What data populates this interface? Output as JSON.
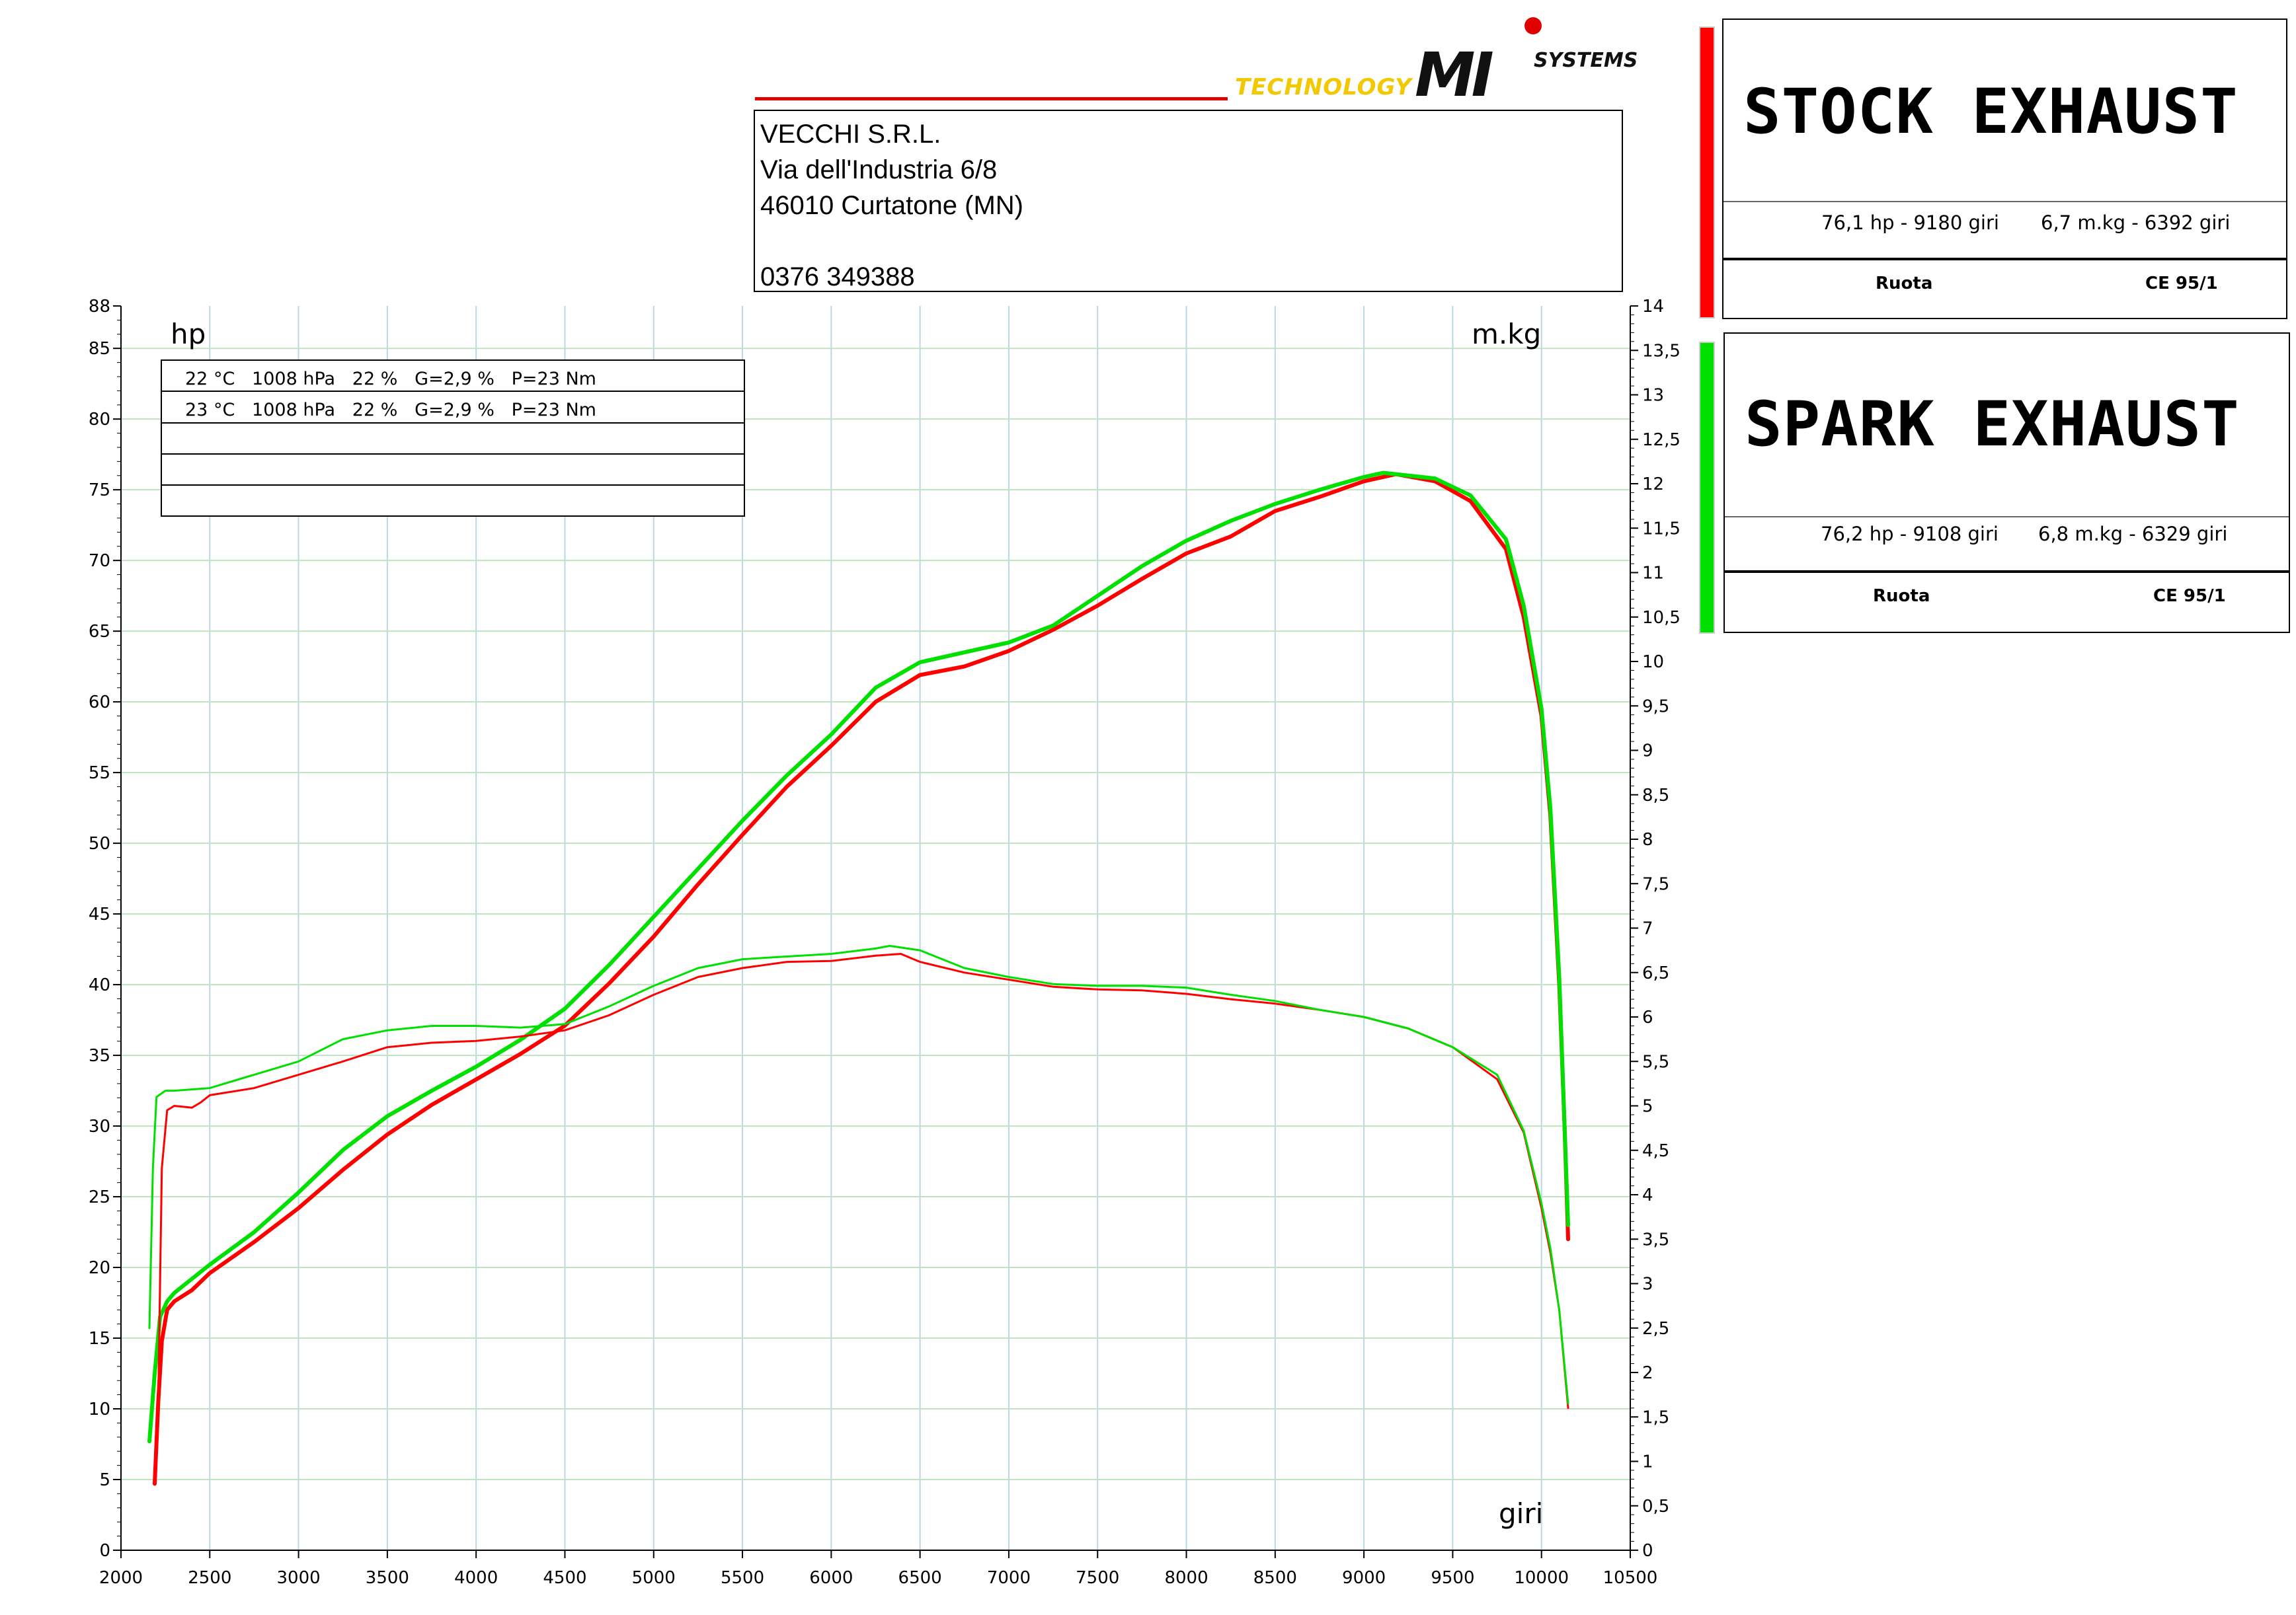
{
  "header": {
    "logo_text": "TECHNOLOGY MI SYSTEMS",
    "logo_tech": "TECHNOLOGY",
    "logo_mi": "MI",
    "logo_sys": "SYSTEMS",
    "address_lines": [
      "VECCHI S.R.L.",
      "Via dell'Industria 6/8",
      "46010 Curtatone (MN)",
      "",
      "0376 349388"
    ]
  },
  "legend": [
    {
      "name": "STOCK EXHAUST",
      "color": "#ff0000",
      "power_info": "76,1 hp - 9180 giri",
      "torque_info": "6,7 m.kg - 6392 giri",
      "mode": "Ruota",
      "standard": "CE 95/1"
    },
    {
      "name": "SPARK EXHAUST",
      "color": "#00e000",
      "power_info": "76,2 hp - 9108 giri",
      "torque_info": "6,8 m.kg - 6329 giri",
      "mode": "Ruota",
      "standard": "CE 95/1"
    }
  ],
  "conditions": [
    "22 °C   1008 hPa   22 %   G=2,9 %   P=23 Nm",
    "23 °C   1008 hPa   22 %   G=2,9 %   P=23 Nm",
    "",
    "",
    ""
  ],
  "chart_data": {
    "type": "line",
    "ylabel_left": "hp",
    "ylabel_right": "m.kg",
    "xlabel": "giri",
    "xlim": [
      2000,
      10500
    ],
    "ylim_left": [
      0,
      88
    ],
    "ylim_right": [
      0,
      14
    ],
    "x_ticks": [
      2000,
      2500,
      3000,
      3500,
      4000,
      4500,
      5000,
      5500,
      6000,
      6500,
      7000,
      7500,
      8000,
      8500,
      9000,
      9500,
      10000,
      10500
    ],
    "y_ticks_left": [
      "0",
      "5",
      "10",
      "15",
      "20",
      "25",
      "30",
      "35",
      "40",
      "45",
      "50",
      "55",
      "60",
      "65",
      "70",
      "75",
      "80",
      "85",
      "88"
    ],
    "y_ticks_right": [
      "0",
      "0,5",
      "1",
      "1,5",
      "2",
      "2,5",
      "3",
      "3,5",
      "4",
      "4,5",
      "5",
      "5,5",
      "6",
      "6,5",
      "7",
      "7,5",
      "8",
      "8,5",
      "9",
      "9,5",
      "10",
      "10,5",
      "11",
      "11,5",
      "12",
      "12,5",
      "13",
      "13,5",
      "14"
    ],
    "grid": true,
    "series": [
      {
        "name": "STOCK EXHAUST",
        "kind": "power",
        "axis": "left",
        "color": "#ff0000",
        "points": [
          [
            2190,
            4.7
          ],
          [
            2210,
            10.5
          ],
          [
            2230,
            14.8
          ],
          [
            2260,
            17.0
          ],
          [
            2300,
            17.6
          ],
          [
            2400,
            18.4
          ],
          [
            2500,
            19.6
          ],
          [
            2750,
            21.8
          ],
          [
            3000,
            24.2
          ],
          [
            3250,
            26.9
          ],
          [
            3500,
            29.4
          ],
          [
            3750,
            31.5
          ],
          [
            4000,
            33.3
          ],
          [
            4250,
            35.1
          ],
          [
            4500,
            37.1
          ],
          [
            4750,
            40.1
          ],
          [
            5000,
            43.4
          ],
          [
            5250,
            47.1
          ],
          [
            5500,
            50.6
          ],
          [
            5750,
            54.0
          ],
          [
            6000,
            56.9
          ],
          [
            6250,
            60.0
          ],
          [
            6500,
            61.9
          ],
          [
            6750,
            62.5
          ],
          [
            7000,
            63.6
          ],
          [
            7250,
            65.1
          ],
          [
            7500,
            66.8
          ],
          [
            7750,
            68.7
          ],
          [
            8000,
            70.5
          ],
          [
            8250,
            71.7
          ],
          [
            8500,
            73.5
          ],
          [
            8750,
            74.5
          ],
          [
            9000,
            75.6
          ],
          [
            9180,
            76.1
          ],
          [
            9400,
            75.6
          ],
          [
            9600,
            74.2
          ],
          [
            9800,
            70.8
          ],
          [
            9900,
            66.0
          ],
          [
            10000,
            59.0
          ],
          [
            10050,
            52.0
          ],
          [
            10100,
            40.0
          ],
          [
            10130,
            30.0
          ],
          [
            10150,
            22.0
          ]
        ]
      },
      {
        "name": "SPARK EXHAUST",
        "kind": "power",
        "axis": "left",
        "color": "#00e000",
        "points": [
          [
            2160,
            7.7
          ],
          [
            2190,
            12.5
          ],
          [
            2220,
            16.5
          ],
          [
            2260,
            17.6
          ],
          [
            2300,
            18.2
          ],
          [
            2400,
            19.2
          ],
          [
            2500,
            20.2
          ],
          [
            2750,
            22.5
          ],
          [
            3000,
            25.3
          ],
          [
            3250,
            28.3
          ],
          [
            3500,
            30.7
          ],
          [
            3750,
            32.5
          ],
          [
            4000,
            34.2
          ],
          [
            4250,
            36.1
          ],
          [
            4500,
            38.3
          ],
          [
            4750,
            41.4
          ],
          [
            5000,
            44.8
          ],
          [
            5250,
            48.2
          ],
          [
            5500,
            51.6
          ],
          [
            5750,
            54.8
          ],
          [
            6000,
            57.7
          ],
          [
            6250,
            61.0
          ],
          [
            6500,
            62.8
          ],
          [
            6750,
            63.5
          ],
          [
            7000,
            64.2
          ],
          [
            7250,
            65.4
          ],
          [
            7500,
            67.5
          ],
          [
            7750,
            69.6
          ],
          [
            8000,
            71.4
          ],
          [
            8250,
            72.8
          ],
          [
            8500,
            74.0
          ],
          [
            8750,
            75.0
          ],
          [
            9000,
            75.9
          ],
          [
            9108,
            76.2
          ],
          [
            9400,
            75.8
          ],
          [
            9600,
            74.6
          ],
          [
            9800,
            71.5
          ],
          [
            9900,
            66.8
          ],
          [
            10000,
            59.5
          ],
          [
            10050,
            52.5
          ],
          [
            10100,
            40.5
          ],
          [
            10130,
            30.0
          ],
          [
            10150,
            23.0
          ]
        ]
      },
      {
        "name": "STOCK EXHAUST",
        "kind": "torque",
        "axis": "right",
        "color": "#ff0000",
        "points": [
          [
            2210,
            1.7
          ],
          [
            2230,
            4.3
          ],
          [
            2260,
            4.95
          ],
          [
            2300,
            5.0
          ],
          [
            2400,
            4.98
          ],
          [
            2450,
            5.04
          ],
          [
            2500,
            5.12
          ],
          [
            2750,
            5.2
          ],
          [
            3000,
            5.35
          ],
          [
            3250,
            5.5
          ],
          [
            3500,
            5.66
          ],
          [
            3750,
            5.71
          ],
          [
            4000,
            5.73
          ],
          [
            4250,
            5.78
          ],
          [
            4500,
            5.85
          ],
          [
            4750,
            6.02
          ],
          [
            5000,
            6.25
          ],
          [
            5250,
            6.45
          ],
          [
            5500,
            6.55
          ],
          [
            5750,
            6.62
          ],
          [
            6000,
            6.63
          ],
          [
            6250,
            6.69
          ],
          [
            6392,
            6.71
          ],
          [
            6500,
            6.62
          ],
          [
            6750,
            6.5
          ],
          [
            7000,
            6.42
          ],
          [
            7250,
            6.34
          ],
          [
            7500,
            6.31
          ],
          [
            7750,
            6.3
          ],
          [
            8000,
            6.26
          ],
          [
            8250,
            6.2
          ],
          [
            8500,
            6.15
          ],
          [
            8750,
            6.08
          ],
          [
            9000,
            6.0
          ],
          [
            9250,
            5.87
          ],
          [
            9500,
            5.66
          ],
          [
            9750,
            5.3
          ],
          [
            9900,
            4.7
          ],
          [
            10000,
            3.85
          ],
          [
            10050,
            3.35
          ],
          [
            10100,
            2.7
          ],
          [
            10150,
            1.6
          ]
        ]
      },
      {
        "name": "SPARK EXHAUST",
        "kind": "torque",
        "axis": "right",
        "color": "#00e000",
        "points": [
          [
            2160,
            2.5
          ],
          [
            2180,
            4.3
          ],
          [
            2200,
            5.1
          ],
          [
            2250,
            5.17
          ],
          [
            2300,
            5.17
          ],
          [
            2500,
            5.2
          ],
          [
            2750,
            5.35
          ],
          [
            3000,
            5.5
          ],
          [
            3250,
            5.75
          ],
          [
            3500,
            5.85
          ],
          [
            3750,
            5.9
          ],
          [
            4000,
            5.9
          ],
          [
            4250,
            5.88
          ],
          [
            4500,
            5.92
          ],
          [
            4750,
            6.12
          ],
          [
            5000,
            6.35
          ],
          [
            5250,
            6.55
          ],
          [
            5500,
            6.65
          ],
          [
            5750,
            6.68
          ],
          [
            6000,
            6.71
          ],
          [
            6250,
            6.77
          ],
          [
            6329,
            6.8
          ],
          [
            6500,
            6.75
          ],
          [
            6750,
            6.55
          ],
          [
            7000,
            6.45
          ],
          [
            7250,
            6.37
          ],
          [
            7500,
            6.35
          ],
          [
            7750,
            6.35
          ],
          [
            8000,
            6.33
          ],
          [
            8250,
            6.25
          ],
          [
            8500,
            6.18
          ],
          [
            8750,
            6.08
          ],
          [
            9000,
            6.0
          ],
          [
            9250,
            5.87
          ],
          [
            9500,
            5.66
          ],
          [
            9750,
            5.35
          ],
          [
            9900,
            4.72
          ],
          [
            10000,
            3.9
          ],
          [
            10050,
            3.4
          ],
          [
            10100,
            2.7
          ],
          [
            10150,
            1.65
          ]
        ]
      }
    ]
  }
}
